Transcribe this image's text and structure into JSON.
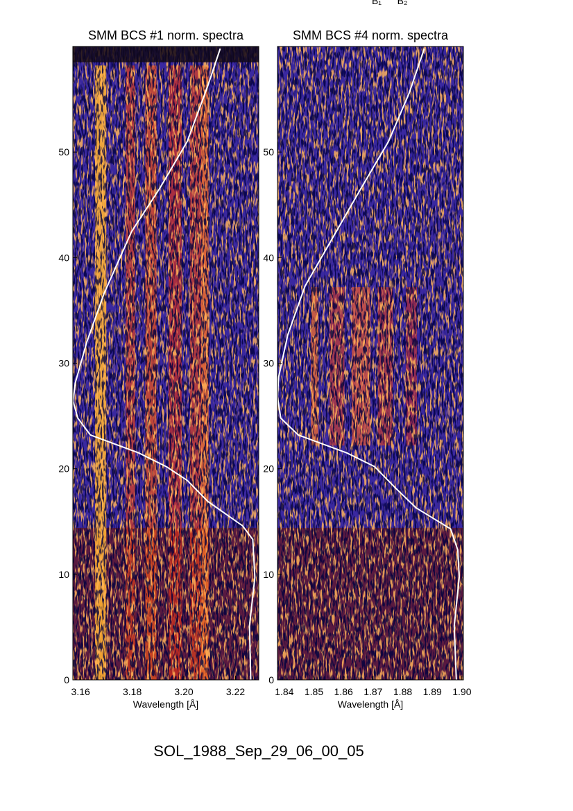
{
  "header": {
    "labels": [
      "B₁",
      "B₂"
    ]
  },
  "figure_title": "SOL_1988_Sep_29_06_00_05",
  "chart_data": [
    {
      "type": "spectrogram",
      "title": "SMM BCS #1 norm. spectra",
      "x_label": "Wavelength [Å]",
      "xlim": [
        3.157,
        3.229
      ],
      "xticks": [
        3.16,
        3.18,
        {
          "value": 3.2,
          "label": "3.20"
        },
        3.22
      ],
      "ylim": [
        0,
        60
      ],
      "yticks": [
        0,
        10,
        20,
        30,
        40,
        50
      ],
      "series": [
        {
          "color": "#ffffff",
          "x": [
            3.2141,
            3.2093,
            3.2013,
            3.1905,
            3.1798,
            3.1691,
            3.1624,
            3.1579,
            3.1571,
            3.1589,
            3.1638,
            3.1825,
            3.1932,
            3.2013,
            3.2093,
            3.2227,
            3.2267,
            3.2275,
            3.2254,
            3.2259
          ],
          "values": [
            59.8,
            56.3,
            51.0,
            46.5,
            42.5,
            36.6,
            32.0,
            28.1,
            26.4,
            24.8,
            23.2,
            21.5,
            20.2,
            18.9,
            16.9,
            14.6,
            13.3,
            9.7,
            5.1,
            0
          ]
        }
      ]
    },
    {
      "type": "spectrogram",
      "title": "SMM BCS #4 norm. spectra",
      "x_label": "Wavelength [Å]",
      "xlim": [
        1.8377,
        1.9005
      ],
      "xticks": [
        1.84,
        1.85,
        1.86,
        1.87,
        1.88,
        1.89,
        {
          "value": 1.9,
          "label": "1.90"
        }
      ],
      "ylim": [
        0,
        60
      ],
      "yticks": [
        0,
        10,
        20,
        30,
        40,
        50
      ],
      "series": [
        {
          "color": "#ffffff",
          "x": [
            1.8873,
            1.8822,
            1.8752,
            1.8658,
            1.8564,
            1.847,
            1.8412,
            1.8381,
            1.8377,
            1.8388,
            1.8447,
            1.8611,
            1.8705,
            1.8775,
            1.8845,
            1.8962,
            1.8986,
            1.8991,
            1.8974,
            1.8981
          ],
          "values": [
            59.8,
            55.6,
            51.0,
            46.5,
            41.9,
            37.3,
            32.7,
            28.7,
            26.8,
            24.8,
            23.2,
            21.5,
            20.2,
            18.2,
            16.3,
            14.3,
            12.3,
            9.7,
            5.1,
            0
          ]
        }
      ]
    }
  ]
}
